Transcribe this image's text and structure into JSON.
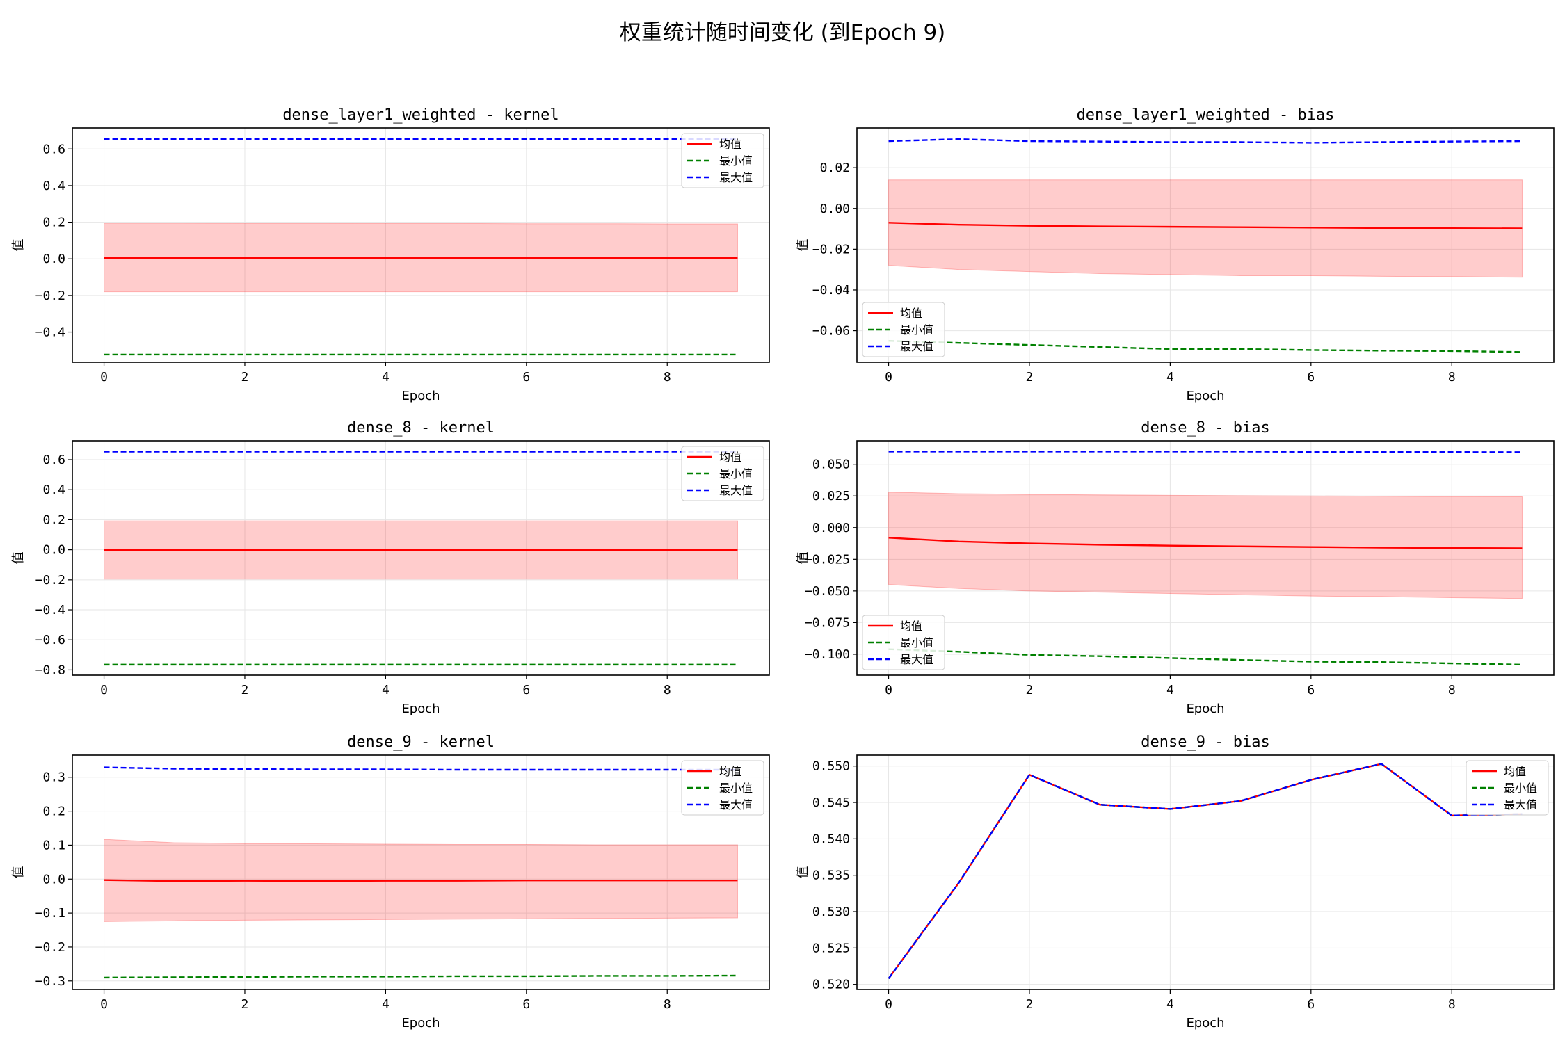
{
  "figure": {
    "title": "权重统计随时间变化 (到Epoch 9)"
  },
  "legend_labels": [
    "均值",
    "最小值",
    "最大值"
  ],
  "colors": {
    "mean": "#ff0000",
    "min": "#008000",
    "max": "#0000ff",
    "band": "#ff0000",
    "grid": "#e6e6e6"
  },
  "chart_data": [
    {
      "type": "line",
      "title": "dense_layer1_weighted - kernel",
      "xlabel": "Epoch",
      "ylabel": "值",
      "xlim": [
        -0.45,
        9.45
      ],
      "ylim": [
        -0.565,
        0.715
      ],
      "xticks": [
        0,
        2,
        4,
        6,
        8
      ],
      "yticks": [
        -0.4,
        -0.2,
        0.0,
        0.2,
        0.4,
        0.6
      ],
      "ytick_labels": [
        "−0.4",
        "−0.2",
        "0.0",
        "0.2",
        "0.4",
        "0.6"
      ],
      "grid": true,
      "legend_position": "upper right",
      "x": [
        0,
        1,
        2,
        3,
        4,
        5,
        6,
        7,
        8,
        9
      ],
      "series": [
        {
          "name": "均值",
          "style": "solid",
          "values": [
            0.005,
            0.005,
            0.005,
            0.005,
            0.005,
            0.005,
            0.005,
            0.005,
            0.005,
            0.005
          ]
        },
        {
          "name": "最小值",
          "style": "dashed",
          "values": [
            -0.523,
            -0.523,
            -0.523,
            -0.523,
            -0.523,
            -0.523,
            -0.523,
            -0.523,
            -0.523,
            -0.523
          ]
        },
        {
          "name": "最大值",
          "style": "dashed",
          "values": [
            0.654,
            0.654,
            0.654,
            0.654,
            0.654,
            0.654,
            0.654,
            0.654,
            0.654,
            0.654
          ]
        }
      ],
      "band": {
        "lower": [
          -0.18,
          -0.18,
          -0.18,
          -0.18,
          -0.18,
          -0.18,
          -0.18,
          -0.18,
          -0.18,
          -0.18
        ],
        "upper": [
          0.195,
          0.195,
          0.194,
          0.194,
          0.193,
          0.193,
          0.192,
          0.192,
          0.191,
          0.191
        ]
      }
    },
    {
      "type": "line",
      "title": "dense_layer1_weighted - bias",
      "xlabel": "Epoch",
      "ylabel": "值",
      "xlim": [
        -0.45,
        9.45
      ],
      "ylim": [
        -0.0755,
        0.0395
      ],
      "xticks": [
        0,
        2,
        4,
        6,
        8
      ],
      "yticks": [
        -0.06,
        -0.04,
        -0.02,
        0.0,
        0.02
      ],
      "ytick_labels": [
        "−0.06",
        "−0.04",
        "−0.02",
        "0.00",
        "0.02"
      ],
      "grid": true,
      "legend_position": "lower left",
      "x": [
        0,
        1,
        2,
        3,
        4,
        5,
        6,
        7,
        8,
        9
      ],
      "series": [
        {
          "name": "均值",
          "style": "solid",
          "values": [
            -0.007,
            -0.008,
            -0.0085,
            -0.0088,
            -0.009,
            -0.0092,
            -0.0094,
            -0.0096,
            -0.0097,
            -0.0098
          ]
        },
        {
          "name": "最小值",
          "style": "dashed",
          "values": [
            -0.065,
            -0.066,
            -0.067,
            -0.068,
            -0.069,
            -0.069,
            -0.0695,
            -0.0698,
            -0.07,
            -0.0705
          ]
        },
        {
          "name": "最大值",
          "style": "dashed",
          "values": [
            0.033,
            0.034,
            0.033,
            0.0328,
            0.0325,
            0.0325,
            0.0322,
            0.0325,
            0.0328,
            0.033
          ]
        }
      ],
      "band": {
        "lower": [
          -0.028,
          -0.03,
          -0.031,
          -0.032,
          -0.0325,
          -0.033,
          -0.033,
          -0.0333,
          -0.0335,
          -0.0338
        ],
        "upper": [
          0.014,
          0.014,
          0.014,
          0.014,
          0.014,
          0.014,
          0.014,
          0.014,
          0.014,
          0.014
        ]
      }
    },
    {
      "type": "line",
      "title": "dense_8 - kernel",
      "xlabel": "Epoch",
      "ylabel": "值",
      "xlim": [
        -0.45,
        9.45
      ],
      "ylim": [
        -0.835,
        0.725
      ],
      "xticks": [
        0,
        2,
        4,
        6,
        8
      ],
      "yticks": [
        -0.8,
        -0.6,
        -0.4,
        -0.2,
        0.0,
        0.2,
        0.4,
        0.6
      ],
      "ytick_labels": [
        "−0.8",
        "−0.6",
        "−0.4",
        "−0.2",
        "0.0",
        "0.2",
        "0.4",
        "0.6"
      ],
      "grid": true,
      "legend_position": "upper right",
      "x": [
        0,
        1,
        2,
        3,
        4,
        5,
        6,
        7,
        8,
        9
      ],
      "series": [
        {
          "name": "均值",
          "style": "solid",
          "values": [
            -0.002,
            -0.002,
            -0.002,
            -0.002,
            -0.002,
            -0.002,
            -0.002,
            -0.002,
            -0.002,
            -0.002
          ]
        },
        {
          "name": "最小值",
          "style": "dashed",
          "values": [
            -0.765,
            -0.765,
            -0.765,
            -0.765,
            -0.765,
            -0.765,
            -0.765,
            -0.765,
            -0.765,
            -0.765
          ]
        },
        {
          "name": "最大值",
          "style": "dashed",
          "values": [
            0.653,
            0.653,
            0.653,
            0.653,
            0.653,
            0.653,
            0.653,
            0.653,
            0.653,
            0.653
          ]
        }
      ],
      "band": {
        "lower": [
          -0.195,
          -0.195,
          -0.195,
          -0.195,
          -0.195,
          -0.195,
          -0.195,
          -0.195,
          -0.195,
          -0.195
        ],
        "upper": [
          0.192,
          0.192,
          0.192,
          0.192,
          0.192,
          0.192,
          0.192,
          0.192,
          0.192,
          0.192
        ]
      }
    },
    {
      "type": "line",
      "title": "dense_8 - bias",
      "xlabel": "Epoch",
      "ylabel": "值",
      "xlim": [
        -0.45,
        9.45
      ],
      "ylim": [
        -0.1165,
        0.0685
      ],
      "xticks": [
        0,
        2,
        4,
        6,
        8
      ],
      "yticks": [
        -0.1,
        -0.075,
        -0.05,
        -0.025,
        0.0,
        0.025,
        0.05
      ],
      "ytick_labels": [
        "−0.100",
        "−0.075",
        "−0.050",
        "−0.025",
        "0.000",
        "0.025",
        "0.050"
      ],
      "grid": true,
      "legend_position": "lower left",
      "x": [
        0,
        1,
        2,
        3,
        4,
        5,
        6,
        7,
        8,
        9
      ],
      "series": [
        {
          "name": "均值",
          "style": "solid",
          "values": [
            -0.008,
            -0.011,
            -0.0125,
            -0.0135,
            -0.0142,
            -0.0148,
            -0.0153,
            -0.0158,
            -0.0161,
            -0.0163
          ]
        },
        {
          "name": "最小值",
          "style": "dashed",
          "values": [
            -0.096,
            -0.098,
            -0.1005,
            -0.1015,
            -0.103,
            -0.1045,
            -0.1058,
            -0.1062,
            -0.1072,
            -0.1082
          ]
        },
        {
          "name": "最大值",
          "style": "dashed",
          "values": [
            0.06,
            0.06,
            0.06,
            0.06,
            0.06,
            0.06,
            0.0598,
            0.0597,
            0.0596,
            0.0595
          ]
        }
      ],
      "band": {
        "lower": [
          -0.045,
          -0.048,
          -0.05,
          -0.051,
          -0.052,
          -0.053,
          -0.054,
          -0.0545,
          -0.0553,
          -0.056
        ],
        "upper": [
          0.028,
          0.0268,
          0.0262,
          0.0258,
          0.0255,
          0.0252,
          0.025,
          0.0248,
          0.0245,
          0.0243
        ]
      }
    },
    {
      "type": "line",
      "title": "dense_9 - kernel",
      "xlabel": "Epoch",
      "ylabel": "值",
      "xlim": [
        -0.45,
        9.45
      ],
      "ylim": [
        -0.325,
        0.365
      ],
      "xticks": [
        0,
        2,
        4,
        6,
        8
      ],
      "yticks": [
        -0.3,
        -0.2,
        -0.1,
        0.0,
        0.1,
        0.2,
        0.3
      ],
      "ytick_labels": [
        "−0.3",
        "−0.2",
        "−0.1",
        "0.0",
        "0.1",
        "0.2",
        "0.3"
      ],
      "grid": true,
      "legend_position": "upper right",
      "x": [
        0,
        1,
        2,
        3,
        4,
        5,
        6,
        7,
        8,
        9
      ],
      "series": [
        {
          "name": "均值",
          "style": "solid",
          "values": [
            -0.003,
            -0.006,
            -0.005,
            -0.006,
            -0.005,
            -0.005,
            -0.004,
            -0.004,
            -0.004,
            -0.004
          ]
        },
        {
          "name": "最小值",
          "style": "dashed",
          "values": [
            -0.29,
            -0.289,
            -0.288,
            -0.287,
            -0.287,
            -0.286,
            -0.286,
            -0.285,
            -0.285,
            -0.284
          ]
        },
        {
          "name": "最大值",
          "style": "dashed",
          "values": [
            0.329,
            0.325,
            0.324,
            0.323,
            0.323,
            0.322,
            0.322,
            0.322,
            0.322,
            0.322
          ]
        }
      ],
      "band": {
        "lower": [
          -0.125,
          -0.123,
          -0.121,
          -0.12,
          -0.119,
          -0.118,
          -0.117,
          -0.116,
          -0.115,
          -0.114
        ],
        "upper": [
          0.117,
          0.107,
          0.105,
          0.104,
          0.103,
          0.102,
          0.102,
          0.101,
          0.101,
          0.101
        ]
      }
    },
    {
      "type": "line",
      "title": "dense_9 - bias",
      "xlabel": "Epoch",
      "ylabel": "值",
      "xlim": [
        -0.45,
        9.45
      ],
      "ylim": [
        0.5193,
        0.5515
      ],
      "xticks": [
        0,
        2,
        4,
        6,
        8
      ],
      "yticks": [
        0.52,
        0.525,
        0.53,
        0.535,
        0.54,
        0.545,
        0.55
      ],
      "ytick_labels": [
        "0.520",
        "0.525",
        "0.530",
        "0.535",
        "0.540",
        "0.545",
        "0.550"
      ],
      "grid": true,
      "legend_position": "upper right",
      "x": [
        0,
        1,
        2,
        3,
        4,
        5,
        6,
        7,
        8,
        9
      ],
      "series": [
        {
          "name": "均值",
          "style": "solid",
          "values": [
            0.5208,
            0.534,
            0.5488,
            0.5447,
            0.5441,
            0.5452,
            0.5481,
            0.5503,
            0.5432,
            0.5434
          ]
        },
        {
          "name": "最小值",
          "style": "dashed",
          "values": [
            0.5208,
            0.534,
            0.5488,
            0.5447,
            0.5441,
            0.5452,
            0.5481,
            0.5503,
            0.5432,
            0.5434
          ]
        },
        {
          "name": "最大值",
          "style": "dashed",
          "values": [
            0.5208,
            0.534,
            0.5488,
            0.5447,
            0.5441,
            0.5452,
            0.5481,
            0.5503,
            0.5432,
            0.5434
          ]
        }
      ]
    }
  ]
}
